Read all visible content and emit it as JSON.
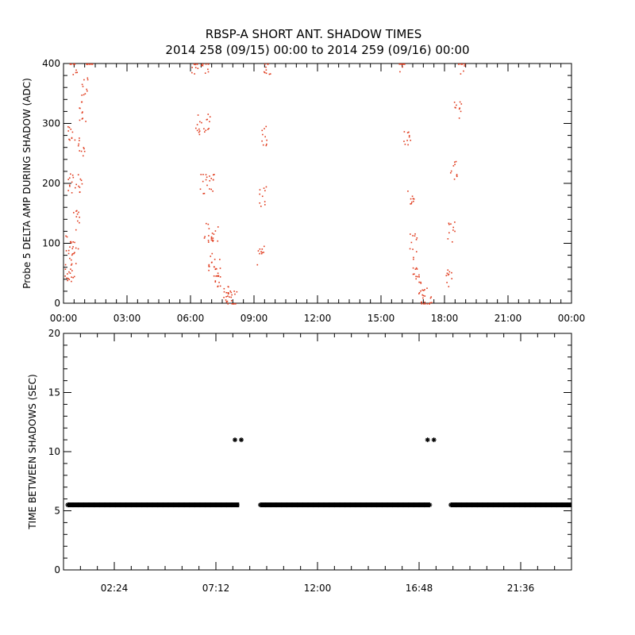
{
  "title_line1": "RBSP-A SHORT ANT. SHADOW TIMES",
  "title_line2": "2014 258 (09/15) 00:00 to 2014 259 (09/16) 00:00",
  "colors": {
    "points_top": "#e03a1c",
    "points_bottom": "#000000",
    "axes": "#000000",
    "background": "#ffffff"
  },
  "chart_data": [
    {
      "type": "scatter",
      "ylabel": "Probe 5 DELTA AMP DURING SHADOW (ADC)",
      "xlabel": "",
      "xlim": [
        0,
        24
      ],
      "ylim": [
        0,
        400
      ],
      "x_unit": "hours",
      "x_tick_labels": [
        "00:00",
        "03:00",
        "06:00",
        "09:00",
        "12:00",
        "15:00",
        "18:00",
        "21:00",
        "00:00"
      ],
      "y_tick_labels": [
        "0",
        "100",
        "200",
        "300",
        "400"
      ],
      "y_ticks": [
        0,
        100,
        200,
        300,
        400
      ],
      "series": [
        {
          "color": "#e03a1c",
          "points": [
            [
              0.2,
              50
            ],
            [
              0.25,
              100
            ],
            [
              0.3,
              200
            ],
            [
              0.35,
              280
            ],
            [
              0.45,
              400
            ],
            [
              0.4,
              60
            ],
            [
              0.5,
              90
            ],
            [
              0.6,
              140
            ],
            [
              0.7,
              200
            ],
            [
              0.8,
              260
            ],
            [
              0.9,
              320
            ],
            [
              1.0,
              360
            ],
            [
              1.2,
              420
            ],
            [
              6.2,
              400
            ],
            [
              6.4,
              300
            ],
            [
              6.6,
              200
            ],
            [
              6.8,
              120
            ],
            [
              7.0,
              70
            ],
            [
              7.3,
              40
            ],
            [
              7.6,
              20
            ],
            [
              7.8,
              10
            ],
            [
              8.0,
              5
            ],
            [
              6.65,
              400
            ],
            [
              6.75,
              300
            ],
            [
              6.95,
              200
            ],
            [
              7.1,
              120
            ],
            [
              7.25,
              60
            ],
            [
              9.3,
              80
            ],
            [
              9.4,
              180
            ],
            [
              9.5,
              280
            ],
            [
              9.6,
              400
            ],
            [
              16.0,
              400
            ],
            [
              16.2,
              280
            ],
            [
              16.4,
              180
            ],
            [
              16.5,
              100
            ],
            [
              16.6,
              60
            ],
            [
              16.8,
              30
            ],
            [
              17.0,
              10
            ],
            [
              17.2,
              0
            ],
            [
              18.2,
              40
            ],
            [
              18.3,
              120
            ],
            [
              18.4,
              220
            ],
            [
              18.6,
              320
            ],
            [
              18.8,
              400
            ]
          ]
        }
      ]
    },
    {
      "type": "scatter",
      "ylabel": "TIME BETWEEN SHADOWS (SEC)",
      "xlabel": "",
      "xlim": [
        0,
        24
      ],
      "ylim": [
        0,
        20
      ],
      "x_unit": "hours",
      "x_tick_labels": [
        "02:24",
        "07:12",
        "12:00",
        "16:48",
        "21:36"
      ],
      "x_ticks": [
        2.4,
        7.2,
        12.0,
        16.8,
        21.6
      ],
      "y_tick_labels": [
        "0",
        "5",
        "10",
        "15",
        "20"
      ],
      "y_ticks": [
        0,
        5,
        10,
        15,
        20
      ],
      "series": [
        {
          "color": "#000000",
          "marker": "asterisk",
          "value_runs": [
            {
              "x_start": 0.2,
              "x_end": 8.3,
              "y": 5.5
            },
            {
              "x_start": 9.3,
              "x_end": 17.3,
              "y": 5.5
            },
            {
              "x_start": 18.3,
              "x_end": 24.0,
              "y": 5.5
            }
          ],
          "points": [
            [
              8.1,
              11.0
            ],
            [
              8.4,
              11.0
            ],
            [
              17.2,
              11.0
            ],
            [
              17.5,
              11.0
            ]
          ]
        }
      ]
    }
  ]
}
